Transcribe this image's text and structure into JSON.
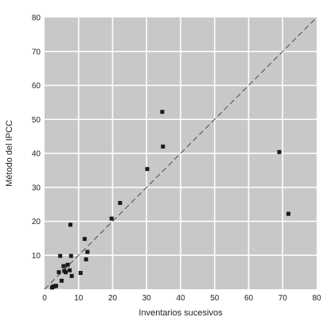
{
  "chart_data": {
    "type": "scatter",
    "title": "",
    "xlabel": "Inventarios sucesivos",
    "ylabel": "Método del IPCC",
    "xlim": [
      0,
      80
    ],
    "ylim": [
      0,
      80
    ],
    "x_ticks": [
      "0",
      "10",
      "20",
      "30",
      "40",
      "50",
      "60",
      "70",
      "80"
    ],
    "y_ticks": [
      "10",
      "20",
      "30",
      "40",
      "50",
      "60",
      "70",
      "80"
    ],
    "grid": true,
    "reference_line": {
      "from": [
        0,
        0
      ],
      "to": [
        80,
        80
      ],
      "style": "dashed"
    },
    "series": [
      {
        "points": [
          [
            2.2,
            0.5
          ],
          [
            2.6,
            0.8
          ],
          [
            3.0,
            0.9
          ],
          [
            3.4,
            1.0
          ],
          [
            4.2,
            5.0
          ],
          [
            4.6,
            9.8
          ],
          [
            5.0,
            2.5
          ],
          [
            5.6,
            6.8
          ],
          [
            5.8,
            5.4
          ],
          [
            6.2,
            5.0
          ],
          [
            6.8,
            7.2
          ],
          [
            7.4,
            5.6
          ],
          [
            7.6,
            19.0
          ],
          [
            7.8,
            9.8
          ],
          [
            8.0,
            3.9
          ],
          [
            10.6,
            4.8
          ],
          [
            11.8,
            14.8
          ],
          [
            12.2,
            8.8
          ],
          [
            12.6,
            11.0
          ],
          [
            19.7,
            20.8
          ],
          [
            22.2,
            25.4
          ],
          [
            30.2,
            35.4
          ],
          [
            34.6,
            52.2
          ],
          [
            34.8,
            42.0
          ],
          [
            69.0,
            40.4
          ],
          [
            71.7,
            22.2
          ]
        ]
      }
    ],
    "colors": {
      "plot_background": "#c8c8c8",
      "grid": "#ffffff",
      "marker": "#1a1a1a",
      "reference_line": "#4a4a4a",
      "axis_text": "#222222"
    }
  }
}
